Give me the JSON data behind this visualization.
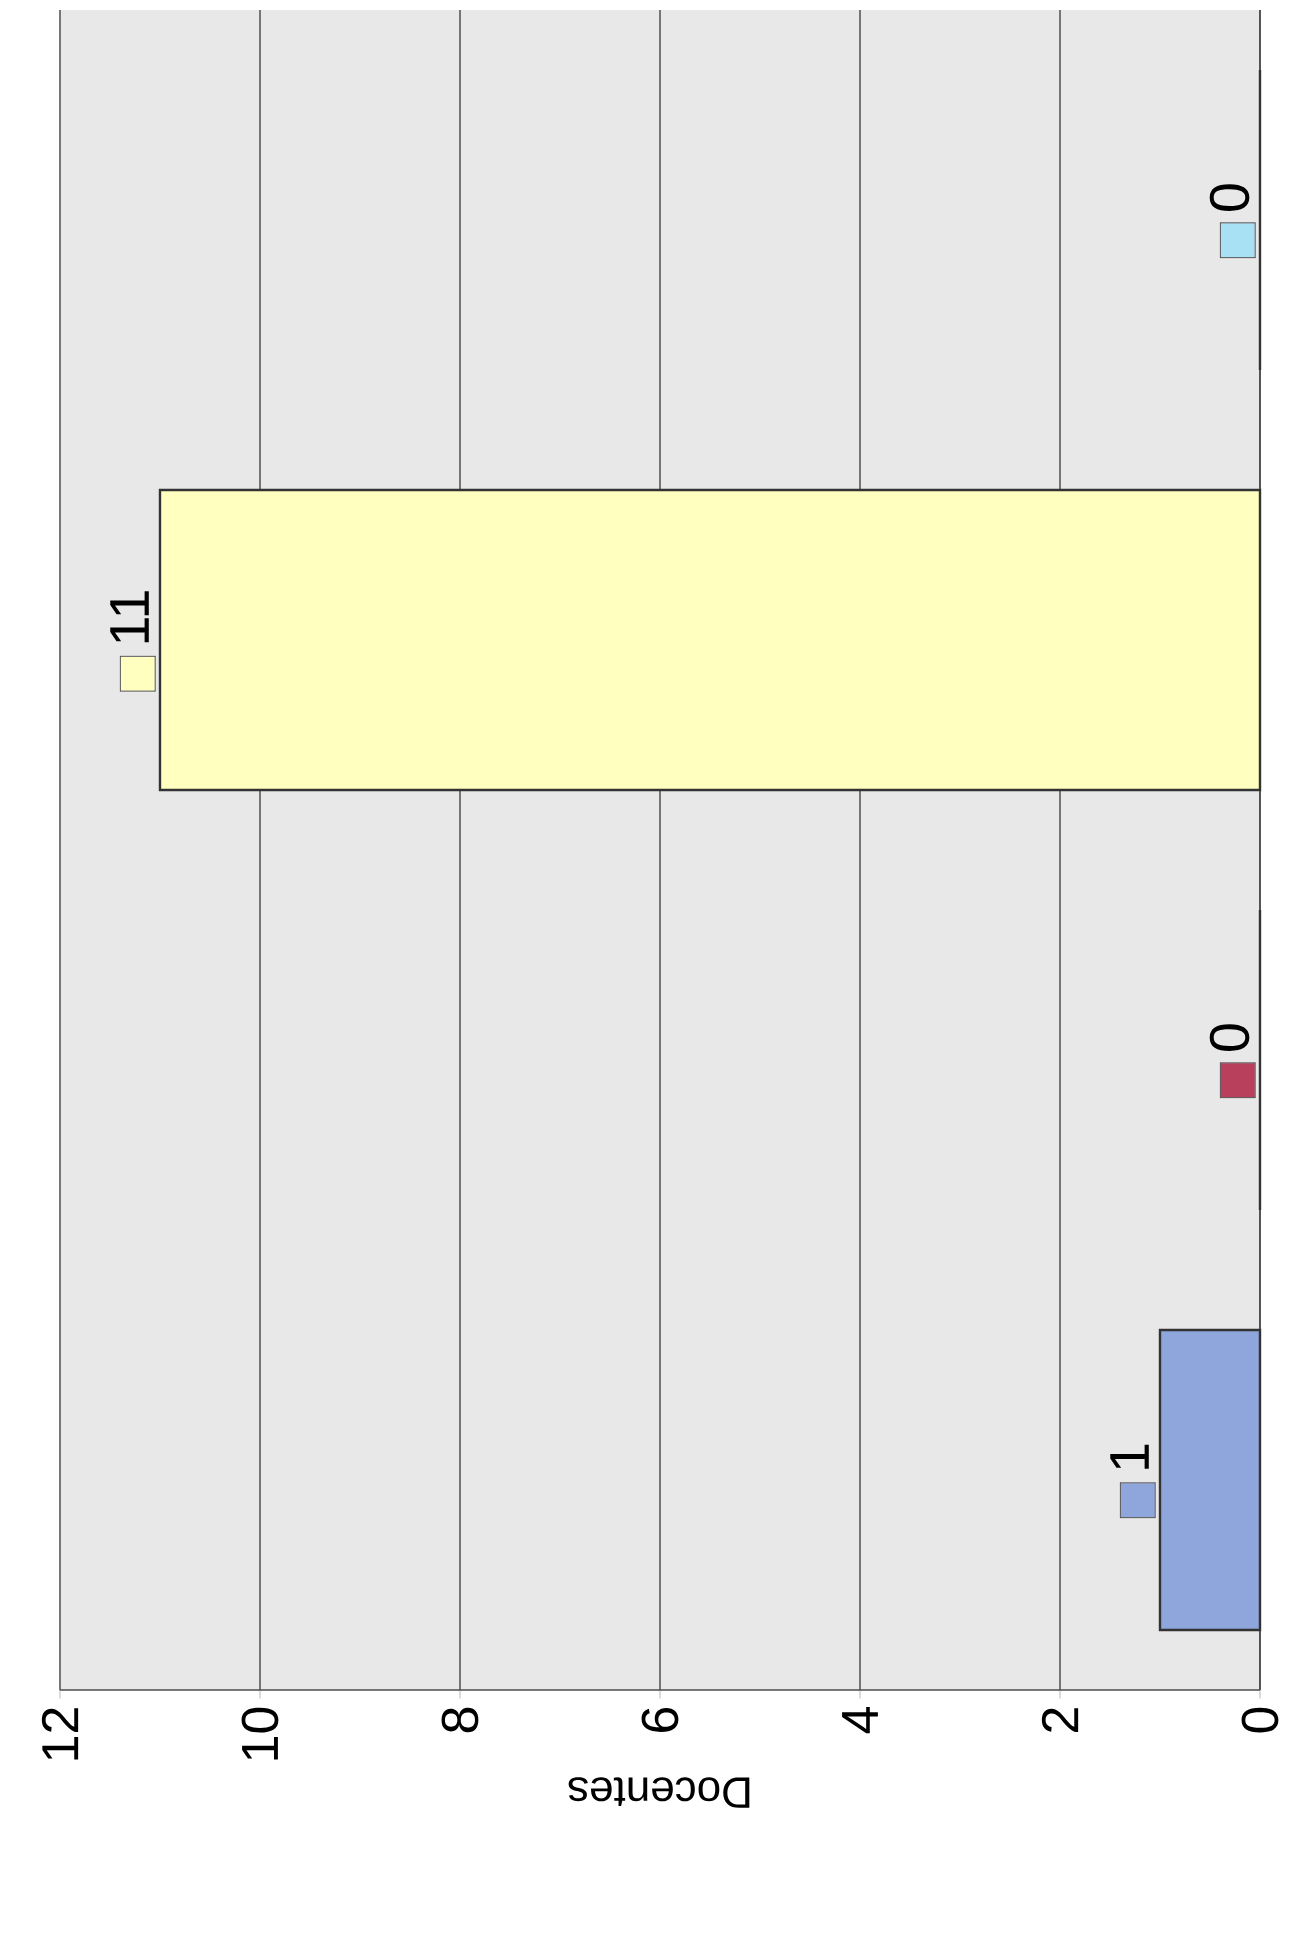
{
  "chart_data": {
    "type": "bar",
    "orientation": "horizontal",
    "xlabel": "Docentes",
    "categories": [
      null,
      null,
      null,
      null
    ],
    "values": [
      0,
      11,
      0,
      1
    ],
    "colors": [
      "#a8e0f4",
      "#ffffc0",
      "#b9405c",
      "#8ea6dc"
    ],
    "xlim": [
      12,
      0
    ],
    "xticks": [
      12,
      10,
      8,
      6,
      4,
      2,
      0
    ],
    "grid": "x",
    "data_labels": true
  }
}
